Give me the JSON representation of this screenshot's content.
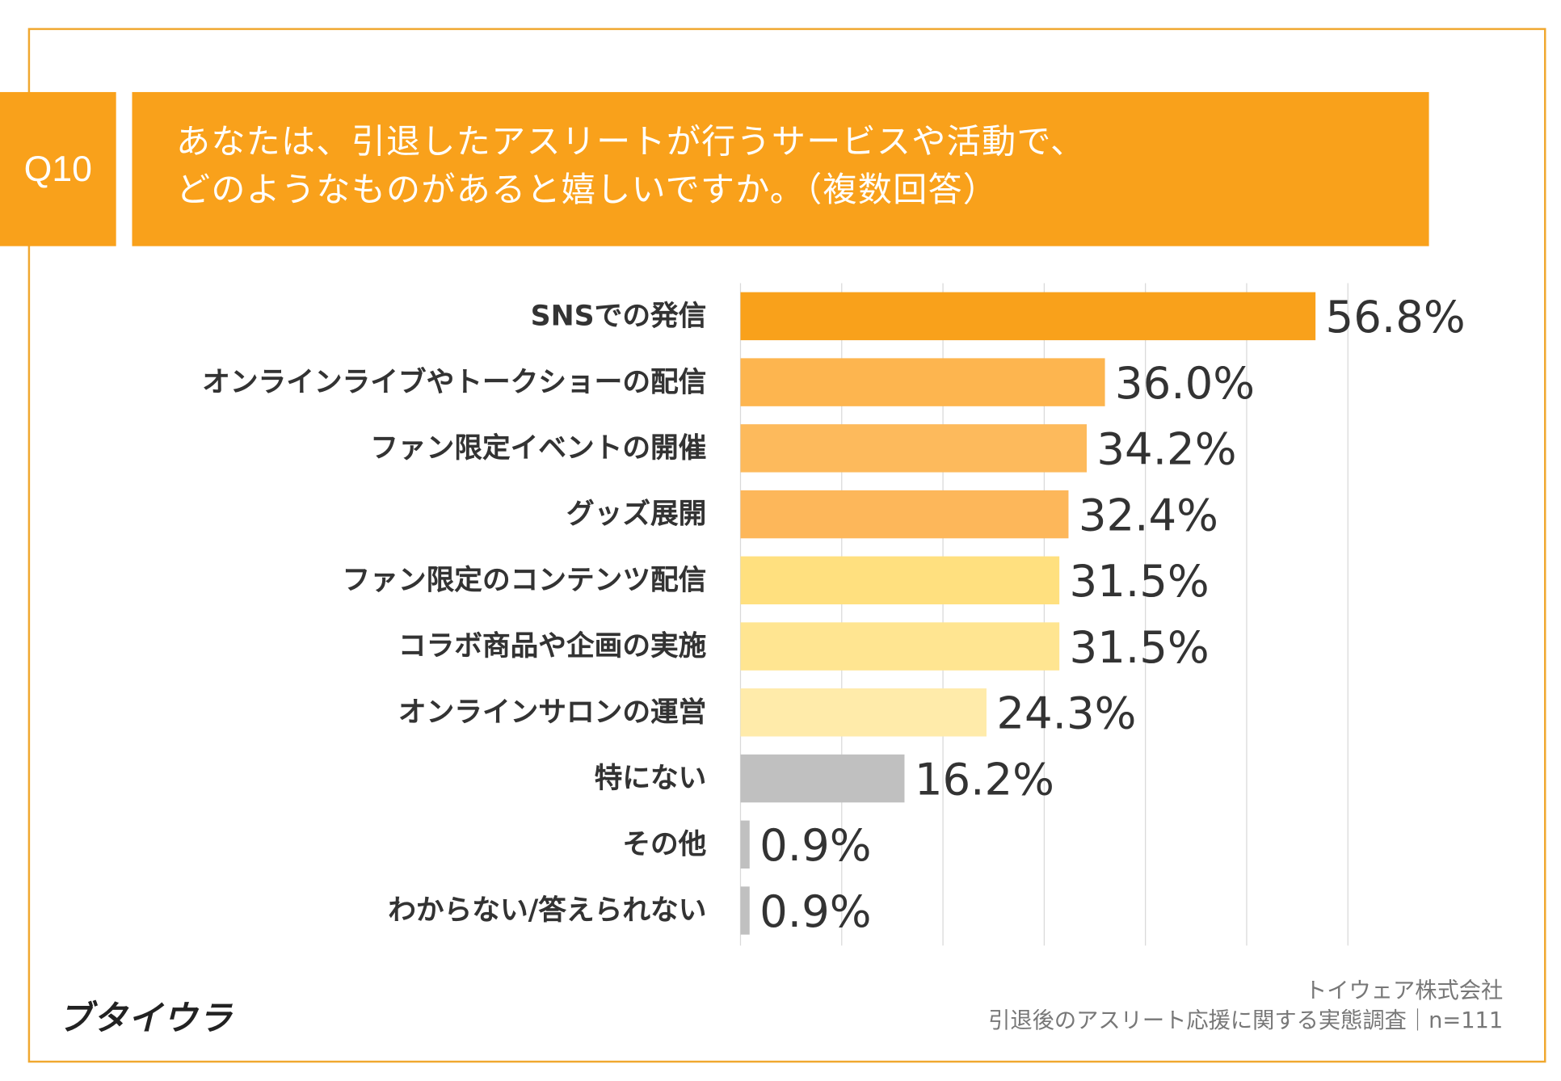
{
  "header": {
    "question_number": "Q10",
    "title_line1": "あなたは、引退したアスリートが行うサービスや活動で、",
    "title_line2": "どのようなものがあると嬉しいですか。（複数回答）"
  },
  "colors": {
    "accent": "#F9A11B",
    "frame": "#F0A830",
    "gridline": "#D9D9D9"
  },
  "chart_data": {
    "type": "bar",
    "orientation": "horizontal",
    "categories": [
      "SNSでの発信",
      "オンラインライブやトークショーの配信",
      "ファン限定イベントの開催",
      "グッズ展開",
      "ファン限定のコンテンツ配信",
      "コラボ商品や企画の実施",
      "オンラインサロンの運営",
      "特にない",
      "その他",
      "わからない/答えられない"
    ],
    "values": [
      56.8,
      36.0,
      34.2,
      32.4,
      31.5,
      31.5,
      24.3,
      16.2,
      0.9,
      0.9
    ],
    "value_labels": [
      "56.8%",
      "36.0%",
      "34.2%",
      "32.4%",
      "31.5%",
      "31.5%",
      "24.3%",
      "16.2%",
      "0.9%",
      "0.9%"
    ],
    "bar_colors": [
      "#F9A11B",
      "#FDB54F",
      "#FDBA5C",
      "#FDB75A",
      "#FFE07F",
      "#FFE591",
      "#FFEBAA",
      "#C0C0C0",
      "#C0C0C0",
      "#C0C0C0"
    ],
    "xlim": [
      0,
      60
    ],
    "grid": true,
    "unit": "%"
  },
  "footer": {
    "logo": "ブタイウラ",
    "company": "トイウェア株式会社",
    "survey": "引退後のアスリート応援に関する実態調査｜n=111"
  }
}
